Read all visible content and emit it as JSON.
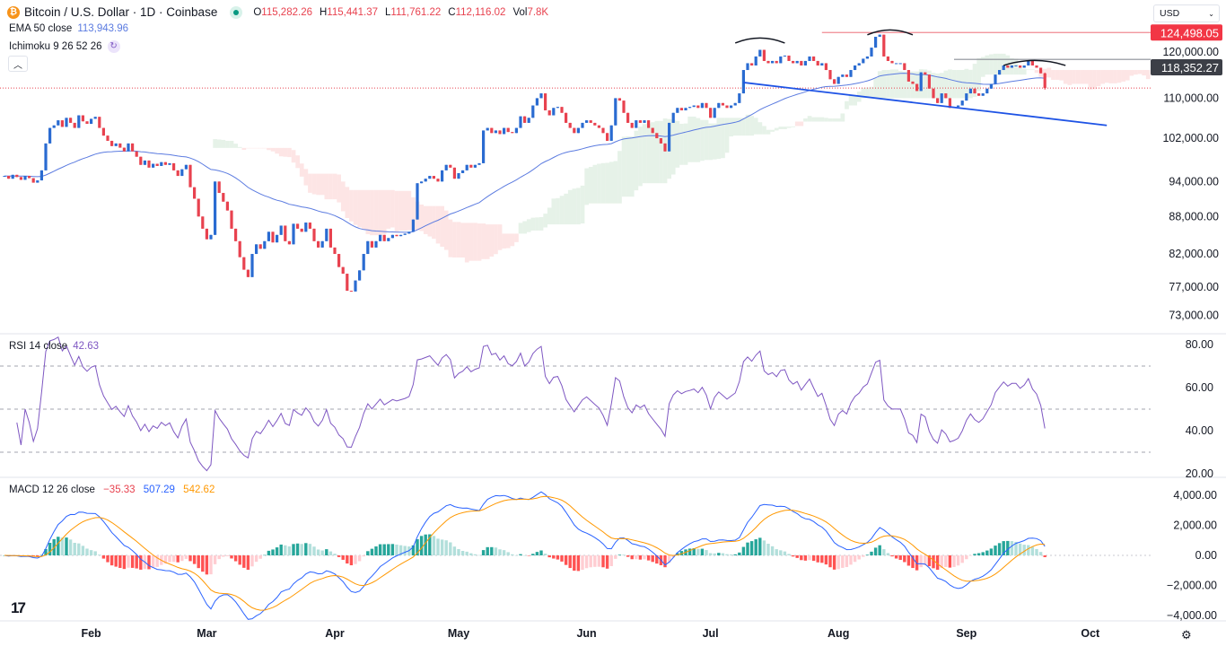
{
  "header": {
    "symbol_icon": "bitcoin-icon",
    "title": "Bitcoin / U.S. Dollar · 1D · Coinbase",
    "market_status": "open",
    "o_label": "O",
    "o": "115,282.26",
    "h_label": "H",
    "h": "115,441.37",
    "l_label": "L",
    "l": "111,761.22",
    "c_label": "C",
    "c": "112,116.02",
    "vol_label": "Vol",
    "vol": "7.8K"
  },
  "indicators": {
    "ema_label": "EMA 50 close",
    "ema_value": "113,943.96",
    "ichimoku_label": "Ichimoku 9 26 52 26",
    "rsi_label": "RSI 14 close",
    "rsi_value": "42.63",
    "macd_label": "MACD 12 26 close",
    "macd_hist": "−35.33",
    "macd_line": "507.29",
    "macd_signal": "542.62"
  },
  "currency": "USD",
  "colors": {
    "up": "#2a6bd1",
    "down": "#e8424f",
    "ema": "#5b7be0",
    "rsi": "#7e57c2",
    "macd": "#2962ff",
    "signal": "#ff9800",
    "cloud_up": "#e6f2e8",
    "cloud_down": "#fde5e5",
    "resistance": "#f23645",
    "neckline": "#1e53e5"
  },
  "chart_data": [
    {
      "type": "candlestick",
      "y_scale": "log",
      "closes": [
        95000,
        94500,
        95200,
        94800,
        94300,
        95000,
        94600,
        93800,
        94200,
        96000,
        101000,
        104000,
        104500,
        105500,
        104200,
        106000,
        105000,
        104000,
        106500,
        105300,
        104800,
        105800,
        106200,
        104000,
        102500,
        101500,
        100500,
        101000,
        100200,
        99500,
        101000,
        99500,
        98500,
        97000,
        97800,
        96500,
        97200,
        96800,
        97500,
        97000,
        97300,
        96000,
        95000,
        96200,
        97000,
        93000,
        91000,
        88000,
        86000,
        84300,
        85000,
        94000,
        92000,
        90500,
        89000,
        86000,
        84000,
        81500,
        79600,
        78500,
        82000,
        83500,
        82800,
        84000,
        85500,
        83800,
        85000,
        86500,
        84000,
        83500,
        86800,
        86000,
        85500,
        87000,
        86000,
        84000,
        83000,
        84000,
        86000,
        83000,
        82000,
        80000,
        79000,
        76500,
        76400,
        78000,
        79500,
        82000,
        84000,
        83000,
        84000,
        85000,
        84000,
        84500,
        85000,
        84800,
        85000,
        85200,
        85500,
        87500,
        93700,
        94000,
        94500,
        95000,
        94500,
        94000,
        96000,
        97000,
        96500,
        94500,
        95500,
        96000,
        97000,
        96500,
        97000,
        97300,
        103500,
        104000,
        103000,
        103500,
        102800,
        104000,
        103200,
        103000,
        104000,
        106300,
        105000,
        106000,
        108500,
        110000,
        111000,
        107500,
        106500,
        108000,
        108200,
        107000,
        105000,
        104000,
        103000,
        104000,
        105000,
        105500,
        105000,
        104500,
        104000,
        103000,
        101500,
        104500,
        110000,
        109500,
        107000,
        105000,
        104000,
        105500,
        105000,
        105500,
        104000,
        103000,
        102000,
        101000,
        99500,
        105000,
        107000,
        108000,
        107500,
        108000,
        108200,
        108500,
        108000,
        109000,
        108000,
        106000,
        108000,
        109000,
        108500,
        108000,
        108500,
        109000,
        111000,
        116000,
        117500,
        117000,
        119000,
        120500,
        118000,
        117500,
        118000,
        117500,
        119000,
        119200,
        118000,
        117500,
        118000,
        117000,
        118000,
        119000,
        118000,
        117000,
        117500,
        116000,
        114000,
        113000,
        114500,
        115000,
        114500,
        116000,
        117000,
        117500,
        118500,
        119000,
        121000,
        123500,
        124000,
        119000,
        118000,
        117500,
        117500,
        117500,
        116000,
        113500,
        113000,
        111500,
        115500,
        115000,
        112000,
        110000,
        109000,
        111000,
        110000,
        108000,
        108200,
        108500,
        109500,
        111000,
        112000,
        111000,
        110500,
        111000,
        112000,
        113000,
        115000,
        116000,
        117000,
        116500,
        117000,
        117000,
        116500,
        117000,
        118000,
        117000,
        116500,
        115282.26,
        112116.02
      ],
      "last_candle": {
        "open": 115282.26,
        "high": 115441.37,
        "low": 111761.22,
        "close": 112116.02
      },
      "y_ticks": [
        "120,000.00",
        "110,000.00",
        "102,000.00",
        "94,000.00",
        "88,000.00",
        "82,000.00",
        "77,000.00",
        "73,000.00"
      ],
      "x_ticks": [
        {
          "label": "Feb",
          "at_candle": 21
        },
        {
          "label": "Mar",
          "at_candle": 49
        },
        {
          "label": "Apr",
          "at_candle": 80
        },
        {
          "label": "May",
          "at_candle": 110
        },
        {
          "label": "Jun",
          "at_candle": 141
        },
        {
          "label": "Jul",
          "at_candle": 171
        },
        {
          "label": "Aug",
          "at_candle": 202
        },
        {
          "label": "Sep",
          "at_candle": 233
        },
        {
          "label": "Oct",
          "at_candle": 263
        }
      ],
      "price_labels": [
        {
          "text": "124,498.05",
          "value": 124498.05,
          "style": "resistance"
        },
        {
          "text": "118,352.27",
          "value": 118352.27,
          "style": "neckline-level"
        }
      ],
      "annotations": {
        "resistance_line": {
          "price": 124498.05,
          "from_candle": 198
        },
        "shoulder_line": {
          "price": 118352.27,
          "from_candle": 230
        },
        "trendline": {
          "from": {
            "candle": 179,
            "price": 113300
          },
          "to": {
            "candle": 267,
            "price": 104500
          }
        },
        "arcs": [
          {
            "from_candle": 177,
            "to_candle": 189,
            "price": 123100
          },
          {
            "from_candle": 209,
            "to_candle": 220,
            "price": 125000
          },
          {
            "from_candle": 242,
            "to_candle": 257,
            "price": 118000
          }
        ]
      },
      "overlays": [
        "EMA 50",
        "Ichimoku 9 26 52 26"
      ]
    },
    {
      "type": "line",
      "name": "RSI 14 close",
      "y_ticks": [
        "80.00",
        "60.00",
        "40.00",
        "20.00"
      ],
      "bands": [
        70,
        50,
        30
      ],
      "last_value": 42.63
    },
    {
      "type": "line+bar",
      "name": "MACD 12 26 close",
      "y_ticks": [
        "4,000.00",
        "2,000.00",
        "0.00",
        "−2,000.00",
        "−4,000.00"
      ],
      "last_values": {
        "histogram": -35.33,
        "macd": 507.29,
        "signal": 542.62
      }
    }
  ]
}
